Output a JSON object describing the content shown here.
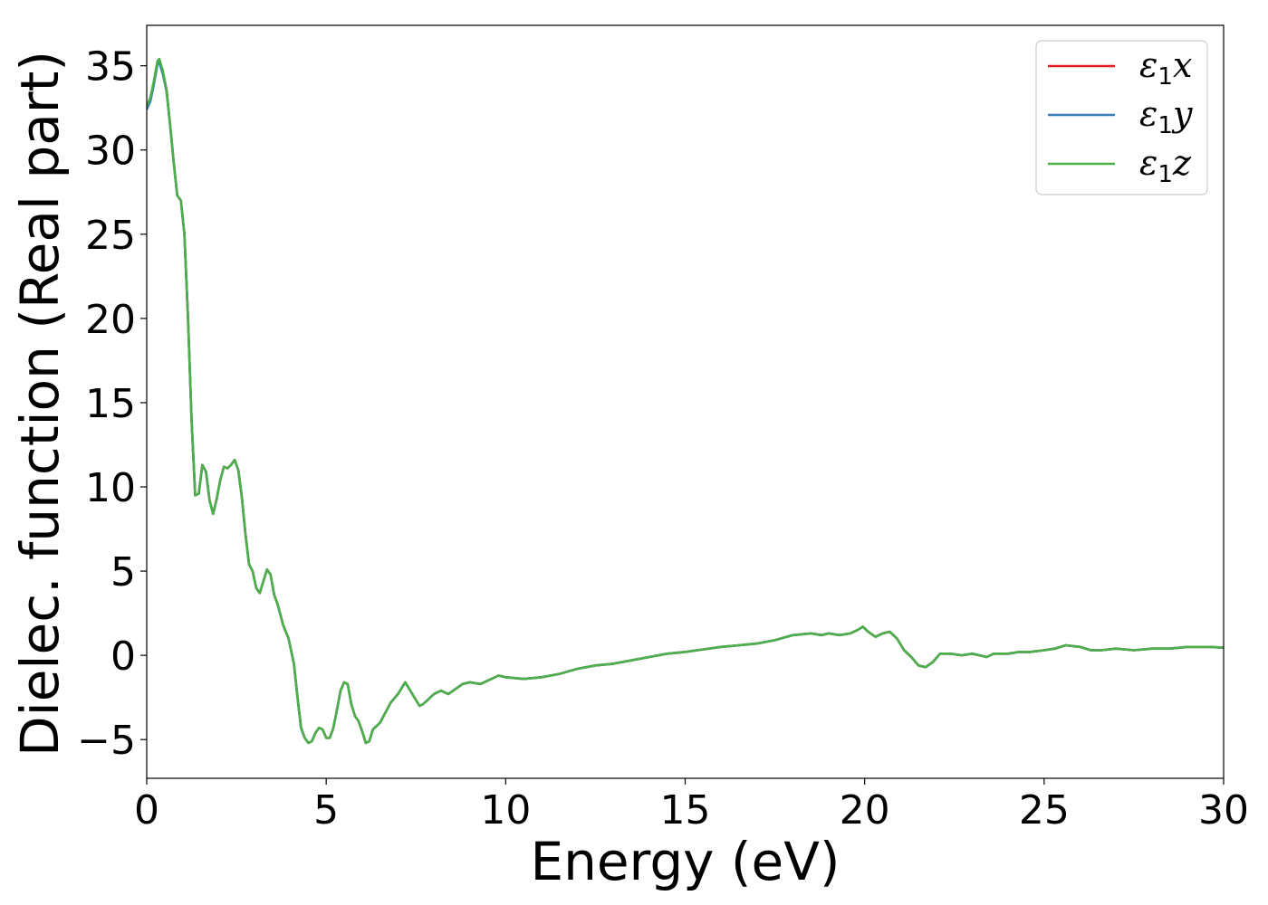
{
  "chart_data": {
    "type": "line",
    "title": "",
    "xlabel": "Energy (eV)",
    "ylabel": "Dielec. function (Real part)",
    "xlim": [
      0,
      30
    ],
    "ylim": [
      -7.3,
      37.4
    ],
    "xticks": [
      0,
      5,
      10,
      15,
      20,
      25,
      30
    ],
    "yticks": [
      -5,
      0,
      5,
      10,
      15,
      20,
      25,
      30,
      35
    ],
    "ytick_labels": [
      "−5",
      "0",
      "5",
      "10",
      "15",
      "20",
      "25",
      "30",
      "35"
    ],
    "grid": false,
    "legend_position": "top-right",
    "series": [
      {
        "name": "ε",
        "name_sub": "1",
        "name_suffix": "x",
        "color": "#e41a1c",
        "x": [
          0,
          0.1,
          0.2,
          0.3,
          0.35,
          0.45,
          0.55,
          0.65,
          0.75,
          0.85,
          0.95,
          1.05,
          1.15,
          1.25,
          1.35,
          1.45,
          1.55,
          1.65,
          1.75,
          1.85,
          1.95,
          2.05,
          2.15,
          2.25,
          2.35,
          2.45,
          2.55,
          2.65,
          2.75,
          2.85,
          2.95,
          3.05,
          3.15,
          3.25,
          3.35,
          3.45,
          3.55,
          3.65,
          3.8,
          3.95,
          4.1,
          4.2,
          4.3,
          4.4,
          4.5,
          4.6,
          4.7,
          4.8,
          4.9,
          5.0,
          5.1,
          5.2,
          5.3,
          5.4,
          5.5,
          5.6,
          5.7,
          5.8,
          5.9,
          6.0,
          6.1,
          6.2,
          6.3,
          6.4,
          6.5,
          6.6,
          6.8,
          7.0,
          7.2,
          7.4,
          7.6,
          7.7,
          7.8,
          8.0,
          8.2,
          8.4,
          8.6,
          8.8,
          9.0,
          9.3,
          9.6,
          9.8,
          10.0,
          10.5,
          11.0,
          11.5,
          12.0,
          12.5,
          13.0,
          13.5,
          14.0,
          14.5,
          15.0,
          15.5,
          16.0,
          16.5,
          17.0,
          17.5,
          18.0,
          18.5,
          18.8,
          19.0,
          19.3,
          19.6,
          19.8,
          19.95,
          20.1,
          20.3,
          20.5,
          20.7,
          20.9,
          21.1,
          21.3,
          21.5,
          21.7,
          21.9,
          22.1,
          22.4,
          22.7,
          23.0,
          23.2,
          23.4,
          23.6,
          23.8,
          24.0,
          24.3,
          24.6,
          25.0,
          25.3,
          25.6,
          26.0,
          26.3,
          26.6,
          27.0,
          27.5,
          28.0,
          28.5,
          29.0,
          29.3,
          29.6,
          30.0
        ],
        "y": [
          32.5,
          33.0,
          34.0,
          35.2,
          35.3,
          34.6,
          33.6,
          31.5,
          29.3,
          27.3,
          27.0,
          25.0,
          20.0,
          14.0,
          9.5,
          9.6,
          11.3,
          10.9,
          9.2,
          8.4,
          9.3,
          10.4,
          11.2,
          11.1,
          11.3,
          11.6,
          11.0,
          9.4,
          7.2,
          5.4,
          5.0,
          4.0,
          3.7,
          4.4,
          5.1,
          4.8,
          3.6,
          3.0,
          1.8,
          1.0,
          -0.5,
          -2.5,
          -4.3,
          -4.9,
          -5.2,
          -5.1,
          -4.6,
          -4.3,
          -4.4,
          -4.9,
          -4.9,
          -4.3,
          -3.2,
          -2.1,
          -1.6,
          -1.7,
          -2.9,
          -3.6,
          -3.9,
          -4.5,
          -5.2,
          -5.1,
          -4.4,
          -4.2,
          -4.0,
          -3.6,
          -2.8,
          -2.3,
          -1.6,
          -2.3,
          -3.0,
          -2.9,
          -2.7,
          -2.3,
          -2.1,
          -2.3,
          -2.0,
          -1.7,
          -1.6,
          -1.7,
          -1.4,
          -1.2,
          -1.3,
          -1.4,
          -1.3,
          -1.1,
          -0.8,
          -0.6,
          -0.5,
          -0.3,
          -0.1,
          0.1,
          0.2,
          0.35,
          0.5,
          0.6,
          0.7,
          0.9,
          1.2,
          1.3,
          1.2,
          1.3,
          1.2,
          1.3,
          1.5,
          1.7,
          1.4,
          1.1,
          1.3,
          1.4,
          1.0,
          0.3,
          -0.1,
          -0.6,
          -0.7,
          -0.4,
          0.1,
          0.1,
          0.0,
          0.1,
          0.0,
          -0.1,
          0.1,
          0.1,
          0.1,
          0.2,
          0.2,
          0.3,
          0.4,
          0.6,
          0.5,
          0.3,
          0.3,
          0.4,
          0.3,
          0.4,
          0.4,
          0.5,
          0.5,
          0.5,
          0.45
        ]
      },
      {
        "name": "ε",
        "name_sub": "1",
        "name_suffix": "y",
        "color": "#377eb8",
        "x": [
          0,
          0.1,
          0.2,
          0.3,
          0.35,
          0.45,
          0.55,
          0.65,
          0.75,
          0.85,
          0.95,
          1.05,
          1.15,
          1.25,
          1.35,
          1.45,
          1.55,
          1.65,
          1.75,
          1.85,
          1.95,
          2.05,
          2.15,
          2.25,
          2.35,
          2.45,
          2.55,
          2.65,
          2.75,
          2.85,
          2.95,
          3.05,
          3.15,
          3.25,
          3.35,
          3.45,
          3.55,
          3.65,
          3.8,
          3.95,
          4.1,
          4.2,
          4.3,
          4.4,
          4.5,
          4.6,
          4.7,
          4.8,
          4.9,
          5.0,
          5.1,
          5.2,
          5.3,
          5.4,
          5.5,
          5.6,
          5.7,
          5.8,
          5.9,
          6.0,
          6.1,
          6.2,
          6.3,
          6.4,
          6.5,
          6.6,
          6.8,
          7.0,
          7.2,
          7.4,
          7.6,
          7.7,
          7.8,
          8.0,
          8.2,
          8.4,
          8.6,
          8.8,
          9.0,
          9.3,
          9.6,
          9.8,
          10.0,
          10.5,
          11.0,
          11.5,
          12.0,
          12.5,
          13.0,
          13.5,
          14.0,
          14.5,
          15.0,
          15.5,
          16.0,
          16.5,
          17.0,
          17.5,
          18.0,
          18.5,
          18.8,
          19.0,
          19.3,
          19.6,
          19.8,
          19.95,
          20.1,
          20.3,
          20.5,
          20.7,
          20.9,
          21.1,
          21.3,
          21.5,
          21.7,
          21.9,
          22.1,
          22.4,
          22.7,
          23.0,
          23.2,
          23.4,
          23.6,
          23.8,
          24.0,
          24.3,
          24.6,
          25.0,
          25.3,
          25.6,
          26.0,
          26.3,
          26.6,
          27.0,
          27.5,
          28.0,
          28.5,
          29.0,
          29.3,
          29.6,
          30.0
        ],
        "y": [
          32.4,
          32.9,
          33.9,
          35.1,
          35.2,
          34.5,
          33.5,
          31.5,
          29.3,
          27.3,
          27.0,
          25.0,
          20.0,
          14.0,
          9.5,
          9.6,
          11.3,
          10.9,
          9.2,
          8.4,
          9.3,
          10.4,
          11.2,
          11.1,
          11.3,
          11.6,
          11.0,
          9.4,
          7.2,
          5.4,
          5.0,
          4.0,
          3.7,
          4.4,
          5.1,
          4.8,
          3.6,
          3.0,
          1.8,
          1.0,
          -0.5,
          -2.5,
          -4.3,
          -4.9,
          -5.2,
          -5.1,
          -4.6,
          -4.3,
          -4.4,
          -4.9,
          -4.9,
          -4.3,
          -3.2,
          -2.1,
          -1.6,
          -1.7,
          -2.9,
          -3.6,
          -3.9,
          -4.5,
          -5.2,
          -5.1,
          -4.4,
          -4.2,
          -4.0,
          -3.6,
          -2.8,
          -2.3,
          -1.6,
          -2.3,
          -3.0,
          -2.9,
          -2.7,
          -2.3,
          -2.1,
          -2.3,
          -2.0,
          -1.7,
          -1.6,
          -1.7,
          -1.4,
          -1.2,
          -1.3,
          -1.4,
          -1.3,
          -1.1,
          -0.8,
          -0.6,
          -0.5,
          -0.3,
          -0.1,
          0.1,
          0.2,
          0.35,
          0.5,
          0.6,
          0.7,
          0.9,
          1.2,
          1.3,
          1.2,
          1.3,
          1.2,
          1.3,
          1.5,
          1.7,
          1.4,
          1.1,
          1.3,
          1.4,
          1.0,
          0.3,
          -0.1,
          -0.6,
          -0.7,
          -0.4,
          0.1,
          0.1,
          0.0,
          0.1,
          0.0,
          -0.1,
          0.1,
          0.1,
          0.1,
          0.2,
          0.2,
          0.3,
          0.4,
          0.6,
          0.5,
          0.3,
          0.3,
          0.4,
          0.3,
          0.4,
          0.4,
          0.5,
          0.5,
          0.5,
          0.45
        ]
      },
      {
        "name": "ε",
        "name_sub": "1",
        "name_suffix": "z",
        "color": "#4daf4a",
        "x": [
          0,
          0.1,
          0.2,
          0.3,
          0.35,
          0.45,
          0.55,
          0.65,
          0.75,
          0.85,
          0.95,
          1.05,
          1.15,
          1.25,
          1.35,
          1.45,
          1.55,
          1.65,
          1.75,
          1.85,
          1.95,
          2.05,
          2.15,
          2.25,
          2.35,
          2.45,
          2.55,
          2.65,
          2.75,
          2.85,
          2.95,
          3.05,
          3.15,
          3.25,
          3.35,
          3.45,
          3.55,
          3.65,
          3.8,
          3.95,
          4.1,
          4.2,
          4.3,
          4.4,
          4.5,
          4.6,
          4.7,
          4.8,
          4.9,
          5.0,
          5.1,
          5.2,
          5.3,
          5.4,
          5.5,
          5.6,
          5.7,
          5.8,
          5.9,
          6.0,
          6.1,
          6.2,
          6.3,
          6.4,
          6.5,
          6.6,
          6.8,
          7.0,
          7.2,
          7.4,
          7.6,
          7.7,
          7.8,
          8.0,
          8.2,
          8.4,
          8.6,
          8.8,
          9.0,
          9.3,
          9.6,
          9.8,
          10.0,
          10.5,
          11.0,
          11.5,
          12.0,
          12.5,
          13.0,
          13.5,
          14.0,
          14.5,
          15.0,
          15.5,
          16.0,
          16.5,
          17.0,
          17.5,
          18.0,
          18.5,
          18.8,
          19.0,
          19.3,
          19.6,
          19.8,
          19.95,
          20.1,
          20.3,
          20.5,
          20.7,
          20.9,
          21.1,
          21.3,
          21.5,
          21.7,
          21.9,
          22.1,
          22.4,
          22.7,
          23.0,
          23.2,
          23.4,
          23.6,
          23.8,
          24.0,
          24.3,
          24.6,
          25.0,
          25.3,
          25.6,
          26.0,
          26.3,
          26.6,
          27.0,
          27.5,
          28.0,
          28.5,
          29.0,
          29.3,
          29.6,
          30.0
        ],
        "y": [
          32.6,
          33.1,
          34.1,
          35.3,
          35.4,
          34.7,
          33.6,
          31.5,
          29.3,
          27.3,
          27.0,
          25.0,
          20.0,
          14.0,
          9.5,
          9.6,
          11.3,
          10.9,
          9.2,
          8.4,
          9.3,
          10.4,
          11.2,
          11.1,
          11.3,
          11.6,
          11.0,
          9.4,
          7.2,
          5.4,
          5.0,
          4.0,
          3.7,
          4.4,
          5.1,
          4.8,
          3.6,
          3.0,
          1.8,
          1.0,
          -0.5,
          -2.5,
          -4.3,
          -4.9,
          -5.2,
          -5.1,
          -4.6,
          -4.3,
          -4.4,
          -4.9,
          -4.9,
          -4.3,
          -3.2,
          -2.1,
          -1.6,
          -1.7,
          -2.9,
          -3.6,
          -3.9,
          -4.5,
          -5.2,
          -5.1,
          -4.4,
          -4.2,
          -4.0,
          -3.6,
          -2.8,
          -2.3,
          -1.6,
          -2.3,
          -3.0,
          -2.9,
          -2.7,
          -2.3,
          -2.1,
          -2.3,
          -2.0,
          -1.7,
          -1.6,
          -1.7,
          -1.4,
          -1.2,
          -1.3,
          -1.4,
          -1.3,
          -1.1,
          -0.8,
          -0.6,
          -0.5,
          -0.3,
          -0.1,
          0.1,
          0.2,
          0.35,
          0.5,
          0.6,
          0.7,
          0.9,
          1.2,
          1.3,
          1.2,
          1.3,
          1.2,
          1.3,
          1.5,
          1.7,
          1.4,
          1.1,
          1.3,
          1.4,
          1.0,
          0.3,
          -0.1,
          -0.6,
          -0.7,
          -0.4,
          0.1,
          0.1,
          0.0,
          0.1,
          0.0,
          -0.1,
          0.1,
          0.1,
          0.1,
          0.2,
          0.2,
          0.3,
          0.4,
          0.6,
          0.5,
          0.3,
          0.3,
          0.4,
          0.3,
          0.4,
          0.4,
          0.5,
          0.5,
          0.5,
          0.45
        ]
      }
    ]
  }
}
